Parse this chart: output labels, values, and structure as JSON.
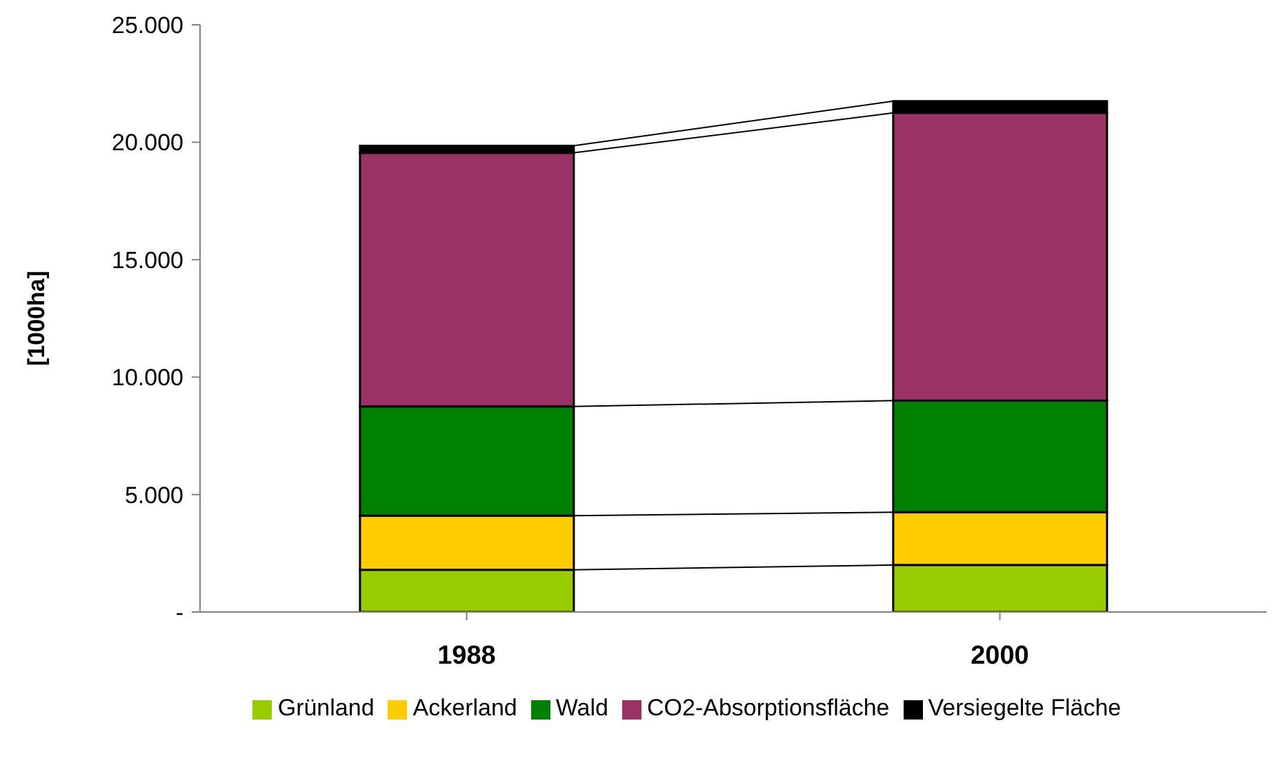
{
  "chart_data": {
    "type": "bar",
    "stacked": true,
    "ylabel": "[1000ha]",
    "categories": [
      "1988",
      "2000"
    ],
    "series": [
      {
        "name": "Grünland",
        "color": "#99cc00",
        "values": [
          1800,
          2000
        ]
      },
      {
        "name": "Ackerland",
        "color": "#ffcc00",
        "values": [
          2300,
          2250
        ]
      },
      {
        "name": "Wald",
        "color": "#008000",
        "values": [
          4650,
          4750
        ]
      },
      {
        "name": "CO2-Absorptionsfläche",
        "color": "#993366",
        "values": [
          10800,
          12250
        ]
      },
      {
        "name": "Versiegelte Fläche",
        "color": "#000000",
        "values": [
          300,
          500
        ]
      }
    ],
    "ylim": [
      0,
      25000
    ],
    "yticks": [
      {
        "value": 0,
        "label": "-"
      },
      {
        "value": 5000,
        "label": "5.000"
      },
      {
        "value": 10000,
        "label": "10.000"
      },
      {
        "value": 15000,
        "label": "15.000"
      },
      {
        "value": 20000,
        "label": "20.000"
      },
      {
        "value": 25000,
        "label": "25.000"
      }
    ],
    "grid": false,
    "legend": "bottom"
  }
}
